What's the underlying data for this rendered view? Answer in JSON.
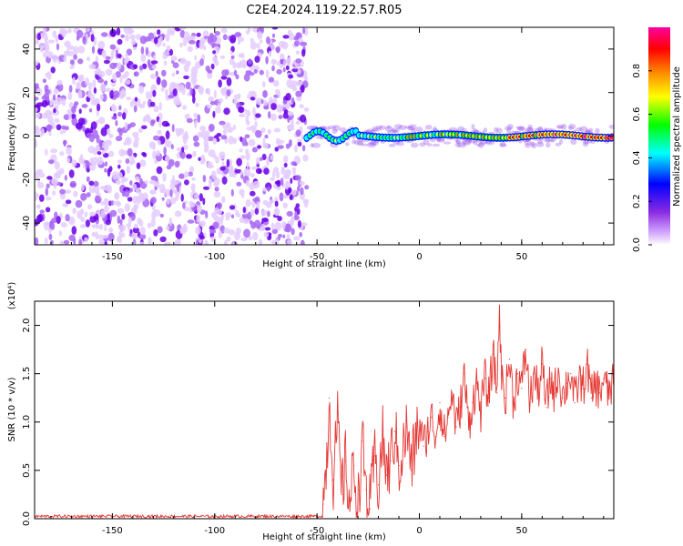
{
  "title": "C2E4.2024.119.22.57.R05",
  "chart_data": [
    {
      "type": "heatmap",
      "title": "",
      "xlabel": "Height of straight line (km)",
      "ylabel": "Frequency (Hz)",
      "xlim": [
        -188,
        95
      ],
      "ylim": [
        -50,
        50
      ],
      "xticks": [
        -150,
        -100,
        -50,
        0,
        50
      ],
      "yticks": [
        -40,
        -20,
        0,
        20,
        40
      ],
      "colorbar": {
        "label": "Normalized spectral amplitude",
        "range": [
          0,
          1
        ],
        "ticks": [
          0.0,
          0.2,
          0.4,
          0.6,
          0.8
        ],
        "colors": [
          "#ffffff",
          "#d8b0ff",
          "#8a2be2",
          "#0000ff",
          "#00ffff",
          "#00ff00",
          "#ffff00",
          "#ff8000",
          "#ff0000",
          "#ff00a0"
        ]
      },
      "regions": [
        {
          "x_range": [
            -188,
            -55
          ],
          "frequency_range": [
            -50,
            50
          ],
          "amplitude": 0.1
        },
        {
          "x_range": [
            -55,
            95
          ],
          "frequency_center": 0,
          "frequency_width": 4,
          "amplitude_range": [
            0.4,
            0.9
          ]
        }
      ]
    },
    {
      "type": "line",
      "title": "",
      "xlabel": "Height of straight line (km)",
      "ylabel": "SNR (10 * v/v)",
      "y_multiplier": "(x10⁴)",
      "xlim": [
        -188,
        95
      ],
      "ylim": [
        0,
        2.25
      ],
      "xticks": [
        -150,
        -100,
        -50,
        0,
        50
      ],
      "yticks": [
        0.0,
        0.5,
        1.0,
        1.5,
        2.0
      ],
      "series": [
        {
          "color": "#e53935",
          "x": [
            -188,
            -60,
            -50,
            -47,
            -45,
            -44,
            -42,
            -40,
            -38,
            -36,
            -34,
            -32,
            -30,
            -28,
            -26,
            -24,
            -22,
            -20,
            -18,
            -16,
            -14,
            -12,
            -10,
            -8,
            -6,
            -4,
            -2,
            0,
            2,
            4,
            6,
            8,
            10,
            12,
            14,
            16,
            18,
            20,
            22,
            24,
            26,
            28,
            30,
            32,
            34,
            36,
            38,
            39,
            40,
            42,
            44,
            46,
            48,
            50,
            52,
            54,
            56,
            58,
            60,
            62,
            64,
            66,
            68,
            70,
            72,
            74,
            76,
            78,
            80,
            82,
            84,
            86,
            88,
            90,
            92,
            95
          ],
          "y": [
            0.02,
            0.02,
            0.03,
            0.15,
            0.7,
            1.25,
            0.4,
            1.0,
            0.25,
            0.6,
            0.15,
            0.55,
            0.1,
            0.8,
            0.3,
            0.1,
            0.65,
            0.35,
            0.85,
            0.45,
            0.6,
            0.9,
            0.55,
            0.7,
            0.95,
            0.5,
            0.8,
            1.0,
            0.75,
            0.9,
            1.05,
            0.85,
            1.2,
            0.85,
            1.05,
            1.3,
            0.95,
            1.15,
            1.5,
            0.95,
            1.2,
            1.4,
            1.1,
            1.45,
            1.25,
            1.7,
            1.3,
            2.25,
            1.5,
            1.25,
            1.65,
            1.2,
            1.5,
            1.35,
            1.75,
            1.2,
            1.5,
            1.3,
            1.6,
            1.15,
            1.45,
            1.3,
            1.55,
            1.25,
            1.4,
            1.5,
            1.2,
            1.45,
            1.35,
            1.6,
            1.25,
            1.4,
            1.3,
            1.45,
            1.3,
            1.4
          ]
        }
      ]
    }
  ]
}
